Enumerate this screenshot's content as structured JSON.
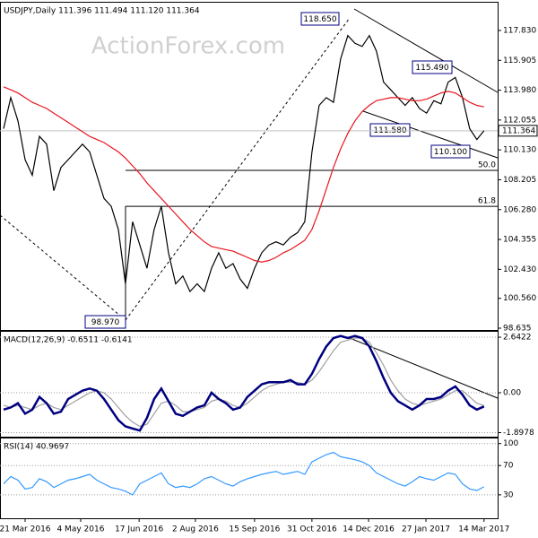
{
  "chart_data": [
    {
      "type": "line",
      "title": "USDJPY,Daily  111.396 111.494 111.120 111.364",
      "watermark": "ActionForex.com",
      "xlim": [
        -0.5,
        68.9
      ],
      "ylim": [
        98.52,
        119.62
      ],
      "yticks": [
        {
          "value": 117.83,
          "label": "117.830"
        },
        115.905,
        {
          "value": 113.98,
          "label": "113.980"
        },
        112.055,
        {
          "value": 110.13,
          "label": "110.130"
        },
        108.205,
        {
          "value": 106.28,
          "label": "106.280"
        },
        104.355,
        {
          "value": 102.43,
          "label": "102.430"
        },
        {
          "value": 100.56,
          "label": "100.560"
        },
        98.635
      ],
      "grid": false,
      "last_price": 111.364,
      "levels": [
        {
          "value": 108.81,
          "label": "50.0"
        },
        {
          "value": 106.49,
          "label": "61.8"
        }
      ],
      "annotations": [
        "118.650",
        "115.490",
        "111.580",
        "110.100",
        "98.970"
      ],
      "series": [
        {
          "color": "#000000",
          "values": [
            111.5,
            113.5,
            112,
            109.5,
            108.5,
            111,
            110.5,
            107.5,
            109,
            109.5,
            110,
            110.5,
            110,
            108.5,
            107,
            106.5,
            105,
            101.5,
            105.5,
            104,
            102.5,
            105,
            106.5,
            103.5,
            101.5,
            102,
            101,
            101.5,
            101,
            102.5,
            103.5,
            102.5,
            102.8,
            101.8,
            101.2,
            102.5,
            103.5,
            104,
            104.2,
            104,
            104.5,
            104.8,
            105.5,
            110,
            113,
            113.5,
            113.2,
            116,
            117.5,
            117,
            116.8,
            117.5,
            116.5,
            114.5,
            114,
            113.5,
            113,
            113.5,
            112.8,
            112.5,
            113.3,
            113.1,
            114.5,
            114.8,
            113.5,
            111.5,
            110.8,
            111.364
          ]
        },
        {
          "color": "#e8141e",
          "values": [
            114.2,
            114.0,
            113.8,
            113.5,
            113.2,
            113.0,
            112.8,
            112.5,
            112.2,
            111.9,
            111.6,
            111.3,
            111.0,
            110.8,
            110.6,
            110.3,
            110.0,
            109.6,
            109.1,
            108.6,
            108.0,
            107.5,
            107.0,
            106.5,
            106.0,
            105.5,
            105.0,
            104.6,
            104.2,
            103.9,
            103.8,
            103.7,
            103.6,
            103.4,
            103.2,
            103.0,
            102.9,
            103.0,
            103.2,
            103.5,
            103.7,
            104.0,
            104.3,
            105.0,
            106.2,
            107.6,
            109.0,
            110.2,
            111.2,
            112.0,
            112.6,
            113.0,
            113.3,
            113.4,
            113.5,
            113.5,
            113.4,
            113.3,
            113.3,
            113.4,
            113.6,
            113.8,
            113.9,
            113.8,
            113.5,
            113.2,
            113.0,
            112.9
          ]
        }
      ]
    },
    {
      "type": "line",
      "title": "MACD(12,26,9) -0.6511 -0.6141",
      "xlim": [
        -0.5,
        68.9
      ],
      "ylim": [
        -2.09,
        2.9
      ],
      "yticks": [
        2.6422,
        {
          "value": 0,
          "label": "0.00"
        },
        -1.8978
      ],
      "grid": true,
      "series": [
        {
          "color": "#a0a0a0",
          "values": [
            -0.6,
            -0.7,
            -0.6,
            -0.7,
            -0.8,
            -0.6,
            -0.5,
            -0.7,
            -0.8,
            -0.6,
            -0.4,
            -0.2,
            0.0,
            0.1,
            0.0,
            -0.3,
            -0.7,
            -1.1,
            -1.4,
            -1.6,
            -1.5,
            -1.0,
            -0.5,
            -0.4,
            -0.6,
            -0.9,
            -0.9,
            -0.8,
            -0.7,
            -0.4,
            -0.3,
            -0.4,
            -0.6,
            -0.7,
            -0.5,
            -0.2,
            0.1,
            0.3,
            0.4,
            0.5,
            0.5,
            0.5,
            0.4,
            0.6,
            1.0,
            1.5,
            2.0,
            2.4,
            2.5,
            2.6,
            2.6,
            2.4,
            1.9,
            1.3,
            0.6,
            0.1,
            -0.3,
            -0.5,
            -0.6,
            -0.5,
            -0.4,
            -0.3,
            -0.1,
            0.1,
            0.1,
            -0.2,
            -0.5,
            -0.6141
          ]
        },
        {
          "color": "#000080",
          "values": [
            -0.8,
            -0.7,
            -0.5,
            -1.0,
            -0.8,
            -0.2,
            -0.5,
            -1.0,
            -0.9,
            -0.3,
            -0.1,
            0.1,
            0.2,
            0.1,
            -0.3,
            -0.8,
            -1.3,
            -1.6,
            -1.7,
            -1.8,
            -1.2,
            -0.3,
            0.2,
            -0.4,
            -1.0,
            -1.1,
            -0.9,
            -0.7,
            -0.6,
            0.0,
            -0.3,
            -0.5,
            -0.8,
            -0.7,
            -0.2,
            0.1,
            0.4,
            0.5,
            0.5,
            0.5,
            0.6,
            0.4,
            0.4,
            0.9,
            1.6,
            2.2,
            2.6,
            2.7,
            2.6,
            2.7,
            2.6,
            2.2,
            1.5,
            0.7,
            0.0,
            -0.4,
            -0.6,
            -0.8,
            -0.6,
            -0.3,
            -0.3,
            -0.2,
            0.1,
            0.3,
            -0.1,
            -0.6,
            -0.8,
            -0.6511
          ]
        }
      ]
    },
    {
      "type": "line",
      "title": "RSI(14) 40.9697",
      "xlim": [
        -0.5,
        68.9
      ],
      "ylim": [
        -2,
        107
      ],
      "yticks": [
        100,
        70,
        30
      ],
      "grid": true,
      "xticks": [
        {
          "value": 3,
          "label": "21 Mar 2016"
        },
        {
          "value": 10.75,
          "label": "4 May 2016"
        },
        {
          "value": 18.9,
          "label": "17 Jun 2016"
        },
        {
          "value": 26.75,
          "label": "2 Aug 2016"
        },
        {
          "value": 35,
          "label": "15 Sep 2016"
        },
        {
          "value": 43,
          "label": "31 Oct 2016"
        },
        {
          "value": 50.9,
          "label": "14 Dec 2016"
        },
        {
          "value": 58.9,
          "label": "27 Jan 2017"
        },
        {
          "value": 67,
          "label": "14 Mar 2017"
        }
      ],
      "series": [
        {
          "color": "#3399ff",
          "values": [
            45,
            55,
            50,
            38,
            40,
            52,
            48,
            40,
            45,
            50,
            52,
            55,
            58,
            50,
            45,
            40,
            38,
            35,
            30,
            45,
            50,
            55,
            60,
            45,
            40,
            42,
            40,
            45,
            52,
            55,
            50,
            45,
            42,
            48,
            52,
            55,
            58,
            60,
            62,
            58,
            60,
            62,
            58,
            75,
            80,
            85,
            88,
            82,
            80,
            78,
            75,
            70,
            60,
            55,
            50,
            45,
            42,
            48,
            55,
            52,
            50,
            55,
            60,
            58,
            45,
            38,
            36,
            40.9697
          ]
        }
      ]
    }
  ]
}
